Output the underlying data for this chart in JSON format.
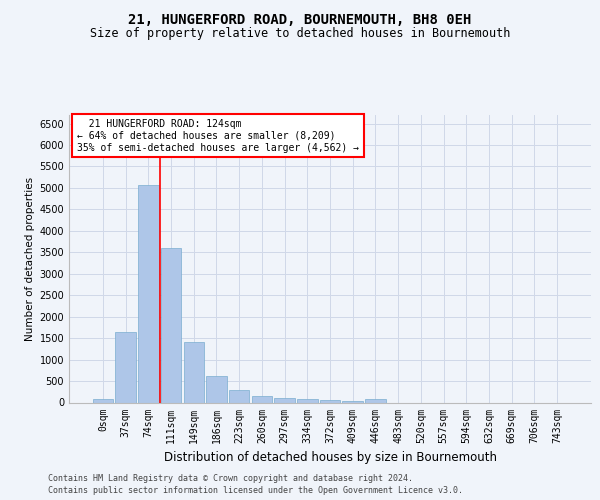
{
  "title_line1": "21, HUNGERFORD ROAD, BOURNEMOUTH, BH8 0EH",
  "title_line2": "Size of property relative to detached houses in Bournemouth",
  "xlabel": "Distribution of detached houses by size in Bournemouth",
  "ylabel": "Number of detached properties",
  "footer_line1": "Contains HM Land Registry data © Crown copyright and database right 2024.",
  "footer_line2": "Contains public sector information licensed under the Open Government Licence v3.0.",
  "bin_labels": [
    "0sqm",
    "37sqm",
    "74sqm",
    "111sqm",
    "149sqm",
    "186sqm",
    "223sqm",
    "260sqm",
    "297sqm",
    "334sqm",
    "372sqm",
    "409sqm",
    "446sqm",
    "483sqm",
    "520sqm",
    "557sqm",
    "594sqm",
    "632sqm",
    "669sqm",
    "706sqm",
    "743sqm"
  ],
  "bar_values": [
    75,
    1650,
    5060,
    3600,
    1420,
    620,
    290,
    155,
    110,
    75,
    50,
    30,
    75,
    0,
    0,
    0,
    0,
    0,
    0,
    0,
    0
  ],
  "bar_color": "#aec6e8",
  "bar_edge_color": "#7aaed0",
  "grid_color": "#d0d8e8",
  "vline_x": 2.5,
  "vline_color": "red",
  "annotation_text": "  21 HUNGERFORD ROAD: 124sqm\n← 64% of detached houses are smaller (8,209)\n35% of semi-detached houses are larger (4,562) →",
  "annotation_box_color": "white",
  "annotation_box_edge": "red",
  "ylim": [
    0,
    6700
  ],
  "yticks": [
    0,
    500,
    1000,
    1500,
    2000,
    2500,
    3000,
    3500,
    4000,
    4500,
    5000,
    5500,
    6000,
    6500
  ],
  "bg_color": "#f0f4fa",
  "title_fontsize": 10,
  "subtitle_fontsize": 8.5,
  "xlabel_fontsize": 8.5,
  "ylabel_fontsize": 7.5,
  "tick_fontsize": 7,
  "footer_fontsize": 6,
  "annot_fontsize": 7
}
